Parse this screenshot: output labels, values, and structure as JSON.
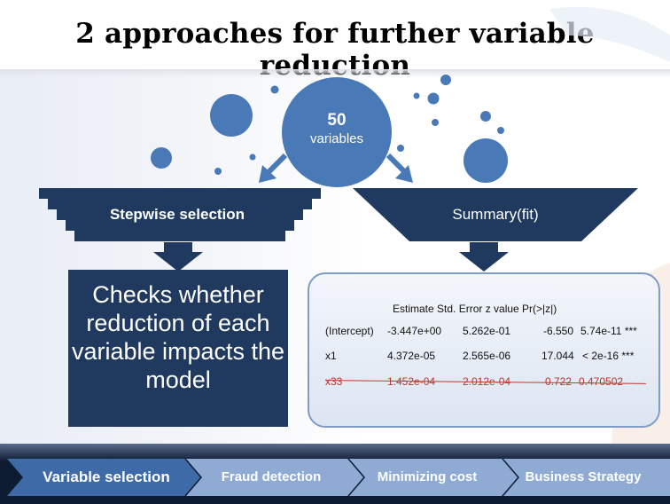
{
  "title": "2 approaches for further variable reduction",
  "hub": {
    "number": "50",
    "label": "variables"
  },
  "left_funnel": {
    "label": "Stepwise selection",
    "description": "Checks whether reduction of each variable impacts the model"
  },
  "right_funnel": {
    "label": "Summary(fit)"
  },
  "summary_table": {
    "header": "Estimate Std. Error z value   Pr(>|z|)",
    "rows": [
      {
        "name": "(Intercept)",
        "estimate": "-3.447e+00",
        "std_error": "5.262e-01",
        "z_value": "-6.550",
        "p_value": "5.74e-11 ***",
        "struck": false
      },
      {
        "name": "x1",
        "estimate": "4.372e-05",
        "std_error": "2.565e-06",
        "z_value": "17.044",
        "p_value": "< 2e-16 ***",
        "struck": false
      },
      {
        "name": "x33",
        "estimate": "1.452e-04",
        "std_error": "2.012e-04",
        "z_value": "0.722",
        "p_value": "0.470502",
        "struck": true
      }
    ]
  },
  "process_steps": [
    {
      "label": "Variable selection",
      "active": true
    },
    {
      "label": "Fraud detection",
      "active": false
    },
    {
      "label": "Minimizing cost",
      "active": false
    },
    {
      "label": "Business Strategy",
      "active": false
    }
  ],
  "colors": {
    "dark_navy": "#203a5f",
    "bubble_blue": "#4a79b8",
    "footer_dark": "#0d1b33",
    "step_active": "#3e6aa8",
    "step_inactive": "#8faad3"
  }
}
